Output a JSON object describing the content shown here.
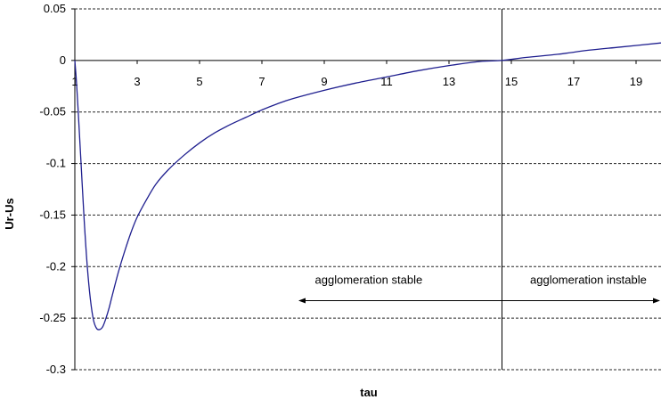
{
  "chart_data": {
    "type": "line",
    "title": "",
    "xlabel": "tau",
    "ylabel": "Ur-Us",
    "xlim": [
      1,
      19.8
    ],
    "ylim": [
      -0.3,
      0.05
    ],
    "x_ticks": [
      "1",
      "3",
      "5",
      "7",
      "9",
      "11",
      "13",
      "15",
      "17",
      "19"
    ],
    "y_ticks": [
      "0.05",
      "0",
      "-0.05",
      "-0.1",
      "-0.15",
      "-0.2",
      "-0.25",
      "-0.3"
    ],
    "grid": "horizontal dashed",
    "line_color": "#1f1f8f",
    "series": [
      {
        "x": [
          1.0,
          1.05,
          1.1,
          1.2,
          1.3,
          1.4,
          1.5,
          1.6,
          1.7,
          1.8,
          1.9,
          2.0,
          2.1,
          2.2,
          2.4,
          2.6,
          2.8,
          3.0,
          3.3,
          3.6,
          4.0,
          4.5,
          5.0,
          5.5,
          6.0,
          6.5,
          7.0,
          7.5,
          8.0,
          9.0,
          10.0,
          11.0,
          12.0,
          13.0,
          14.0,
          14.7,
          15.5,
          16.5,
          17.5,
          18.5,
          19.8
        ],
        "y": [
          0.0,
          -0.02,
          -0.045,
          -0.1,
          -0.155,
          -0.2,
          -0.232,
          -0.252,
          -0.26,
          -0.261,
          -0.258,
          -0.25,
          -0.24,
          -0.228,
          -0.205,
          -0.185,
          -0.167,
          -0.152,
          -0.135,
          -0.12,
          -0.106,
          -0.092,
          -0.08,
          -0.07,
          -0.062,
          -0.055,
          -0.048,
          -0.042,
          -0.037,
          -0.029,
          -0.022,
          -0.016,
          -0.01,
          -0.005,
          -0.001,
          0.0,
          0.003,
          0.006,
          0.01,
          0.013,
          0.017
        ]
      }
    ],
    "marker_line_x": 14.7,
    "annotations": [
      {
        "text": "agglomeration stable",
        "x": 8.7,
        "y": -0.213
      },
      {
        "text": "agglomeration instable",
        "x": 15.6,
        "y": -0.213
      }
    ],
    "arrow": {
      "x_start": 8.2,
      "x_end": 19.8,
      "y": -0.233
    }
  }
}
